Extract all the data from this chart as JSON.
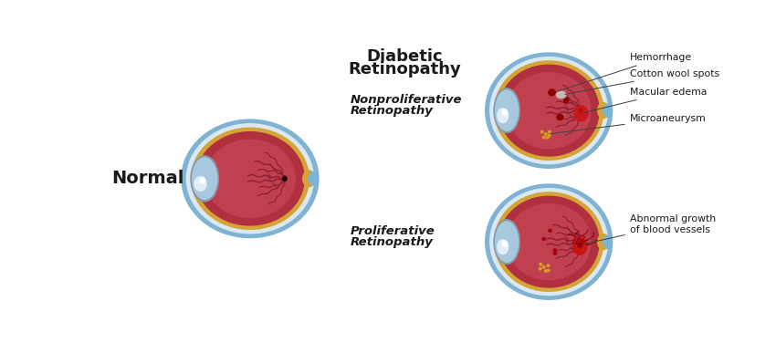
{
  "background_color": "#ffffff",
  "normal_label": "Normal",
  "diabetic_title_line1": "Diabetic",
  "diabetic_title_line2": "Retinopathy",
  "nonprolif_label_line1": "Nonproliferative",
  "nonprolif_label_line2": "Retinopathy",
  "prolif_label_line1": "Proliferative",
  "prolif_label_line2": "Retinopathy",
  "eye_blue_outer": "#7fb3d3",
  "eye_white_sclera": "#dce8f0",
  "eye_choroid_gold": "#d4a535",
  "eye_retina_dark": "#b03040",
  "eye_retina_mid": "#c04050",
  "eye_retina_light": "#c85060",
  "lens_gray": "#c0ccd8",
  "lens_blue": "#a8c8e0",
  "lens_white": "#e8f2fa",
  "vessel_color": "#8b2030",
  "vessel_dark": "#6b1020",
  "text_color": "#1a1a1a",
  "annotation_line_color": "#444444",
  "hemorrhage_color": "#8b0000",
  "cotton_color": "#b8b0a8",
  "macular_color": "#cc2020",
  "microaneurysm_color": "#d4a020",
  "abnormal_vessel_color": "#cc1010"
}
